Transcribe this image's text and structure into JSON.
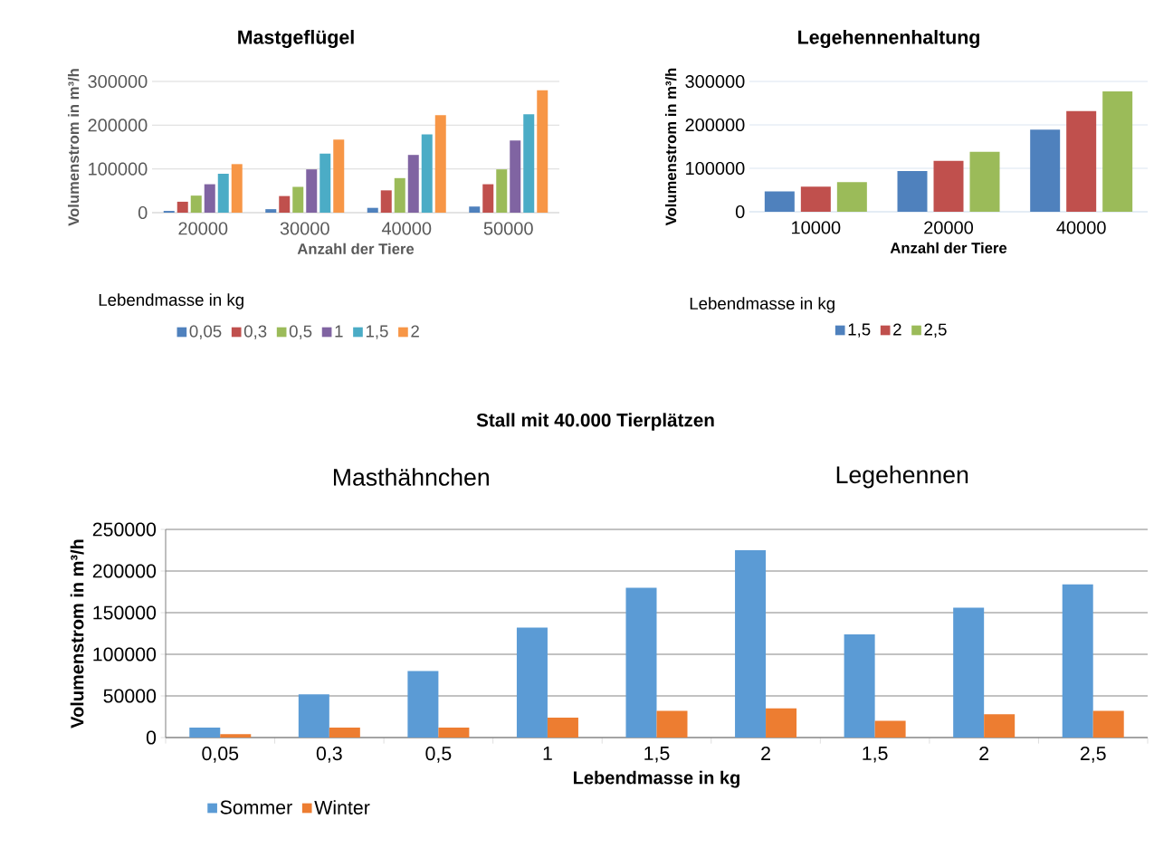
{
  "chart_data": [
    {
      "type": "bar",
      "title": "Mastgeflügel",
      "xlabel": "Anzahl der Tiere",
      "ylabel": "Volumenstrom in m³/h",
      "legend_title": "Lebendmasse in kg",
      "categories": [
        "20000",
        "30000",
        "40000",
        "50000"
      ],
      "series": [
        {
          "name": "0,05",
          "color": "#4f81bd",
          "values": [
            4000,
            8000,
            11000,
            14000
          ]
        },
        {
          "name": "0,3",
          "color": "#c0504d",
          "values": [
            25000,
            38000,
            51000,
            65000
          ]
        },
        {
          "name": "0,5",
          "color": "#9bbb59",
          "values": [
            39000,
            59000,
            79000,
            99000
          ]
        },
        {
          "name": "1",
          "color": "#8064a2",
          "values": [
            65000,
            99000,
            132000,
            165000
          ]
        },
        {
          "name": "1,5",
          "color": "#4bacc6",
          "values": [
            89000,
            135000,
            179000,
            225000
          ]
        },
        {
          "name": "2",
          "color": "#f79646",
          "values": [
            111000,
            167000,
            223000,
            280000
          ]
        }
      ],
      "ylim": [
        0,
        300000
      ],
      "yticks": [
        0,
        100000,
        200000,
        300000
      ],
      "grid": "y",
      "legend": "bottom"
    },
    {
      "type": "bar",
      "title": "Legehennenhaltung",
      "xlabel": "Anzahl der Tiere",
      "ylabel": "Volumenstrom in m³/h",
      "legend_title": "Lebendmasse in kg",
      "categories": [
        "10000",
        "20000",
        "40000"
      ],
      "series": [
        {
          "name": "1,5",
          "color": "#4f81bd",
          "values": [
            47000,
            94000,
            189000
          ]
        },
        {
          "name": "2",
          "color": "#c0504d",
          "values": [
            58000,
            117000,
            232000
          ]
        },
        {
          "name": "2,5",
          "color": "#9bbb59",
          "values": [
            68000,
            138000,
            277000
          ]
        }
      ],
      "ylim": [
        0,
        300000
      ],
      "yticks": [
        0,
        100000,
        200000,
        300000
      ],
      "grid": "y",
      "legend": "bottom"
    },
    {
      "type": "bar",
      "title": "Stall mit 40.000 Tierplätzen",
      "xlabel": "Lebendmasse in kg",
      "ylabel": "Volumenstrom in m³/h",
      "annotations": [
        "Masthähnchen",
        "Legehennen"
      ],
      "categories": [
        "0,05",
        "0,3",
        "0,5",
        "1",
        "1,5",
        "2",
        "1,5",
        "2",
        "2,5"
      ],
      "series": [
        {
          "name": "Sommer",
          "color": "#5b9bd5",
          "values": [
            12000,
            52000,
            80000,
            132000,
            180000,
            225000,
            124000,
            156000,
            184000
          ]
        },
        {
          "name": "Winter",
          "color": "#ed7d31",
          "values": [
            4000,
            12000,
            12000,
            24000,
            32000,
            35000,
            20000,
            28000,
            32000
          ]
        }
      ],
      "ylim": [
        0,
        250000
      ],
      "yticks": [
        0,
        50000,
        100000,
        150000,
        200000,
        250000
      ],
      "grid": "y",
      "legend": "bottom left"
    }
  ]
}
